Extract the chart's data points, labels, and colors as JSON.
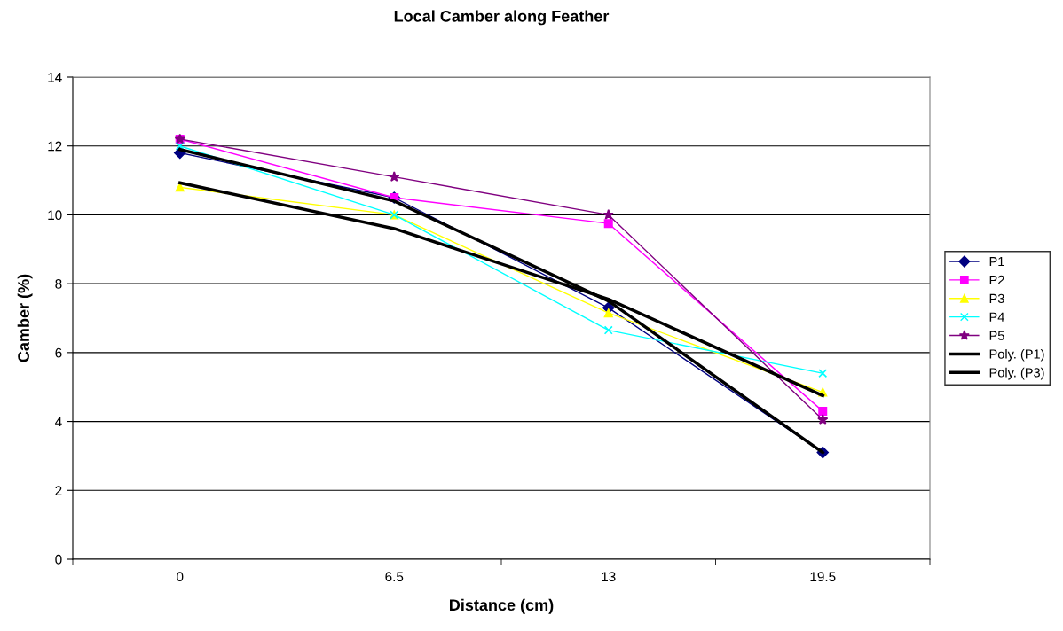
{
  "chart_data": {
    "type": "line",
    "title": "Local Camber along Feather",
    "xlabel": "Distance (cm)",
    "ylabel": "Camber (%)",
    "categories": [
      "0",
      "6.5",
      "13",
      "19.5"
    ],
    "ylim": [
      0,
      14
    ],
    "yticks": [
      0,
      2,
      4,
      6,
      8,
      10,
      12,
      14
    ],
    "grid": "y",
    "legend": "right",
    "series": [
      {
        "name": "P1",
        "color": "#000080",
        "marker": "diamond",
        "values": [
          11.8,
          10.5,
          7.3,
          3.1
        ]
      },
      {
        "name": "P2",
        "color": "#ff00ff",
        "marker": "square",
        "values": [
          12.2,
          10.5,
          9.75,
          4.3
        ]
      },
      {
        "name": "P3",
        "color": "#ffff00",
        "marker": "triangle",
        "values": [
          10.8,
          10.0,
          7.15,
          4.85
        ]
      },
      {
        "name": "P4",
        "color": "#00ffff",
        "marker": "cross",
        "values": [
          12.0,
          10.0,
          6.65,
          5.4
        ]
      },
      {
        "name": "P5",
        "color": "#800080",
        "marker": "star",
        "values": [
          12.2,
          11.1,
          10.0,
          4.05
        ]
      },
      {
        "name": "Poly. (P1)",
        "color": "#000000",
        "marker": "none",
        "values": [
          11.9,
          10.4,
          7.5,
          3.1
        ]
      },
      {
        "name": "Poly. (P3)",
        "color": "#000000",
        "marker": "none",
        "values": [
          10.93,
          9.6,
          7.55,
          4.75
        ]
      }
    ]
  }
}
